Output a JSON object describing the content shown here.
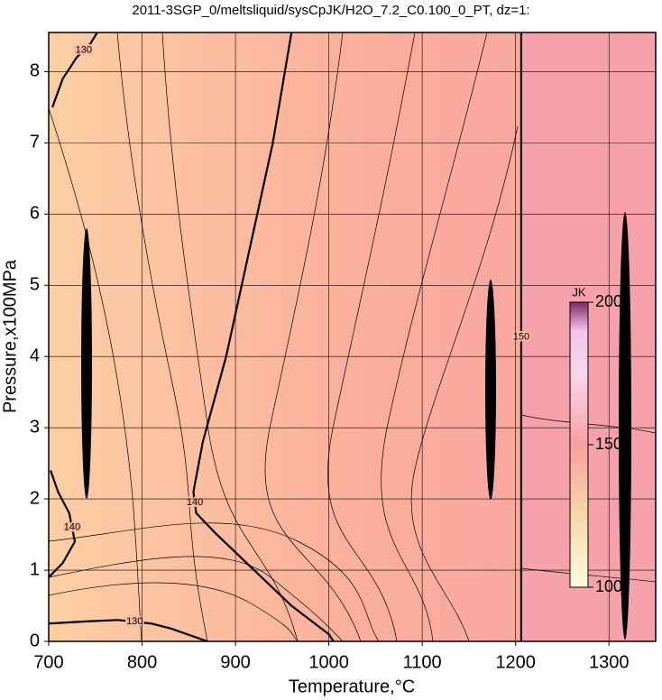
{
  "chart_data": {
    "type": "contour",
    "title": "2011-3SGP_0/meltsliquid/sysCpJK/H2O_7.2_C0.100_0_PT, dz=1:",
    "x_label": "Temperature,°C",
    "y_label": "Pressure,x100MPa",
    "xlim": [
      700,
      1350
    ],
    "xticks": [
      700,
      800,
      900,
      1000,
      1100,
      1200,
      1300
    ],
    "ylim": [
      0,
      8.55
    ],
    "yticks": [
      0,
      1,
      2,
      3,
      4,
      5,
      6,
      7,
      8
    ],
    "grid": true,
    "contours": [
      {
        "level": 140,
        "points": [
          [
            960,
            8.55
          ],
          [
            940,
            7
          ],
          [
            915,
            5.5
          ],
          [
            890,
            4
          ],
          [
            865,
            2.8
          ],
          [
            855,
            2.1
          ],
          [
            858,
            1.8
          ],
          [
            880,
            1.5
          ],
          [
            920,
            1.0
          ],
          [
            960,
            0.5
          ],
          [
            1000,
            0.1
          ],
          [
            1005,
            0
          ]
        ]
      },
      {
        "level": 150,
        "points": [
          [
            1206,
            0
          ],
          [
            1206,
            8.55
          ]
        ]
      },
      {
        "level": 130,
        "points": [
          [
            700,
            0.25
          ],
          [
            740,
            0.28
          ],
          [
            774,
            0.3
          ],
          [
            810,
            0.25
          ],
          [
            831,
            0.18
          ],
          [
            870,
            0
          ]
        ]
      },
      {
        "level": 130,
        "points": [
          [
            704,
            7.5
          ],
          [
            715,
            7.9
          ],
          [
            730,
            8.2
          ],
          [
            745,
            8.4
          ],
          [
            752,
            8.55
          ]
        ]
      },
      {
        "level": 140,
        "points": [
          [
            700,
            0.9
          ],
          [
            715,
            1.1
          ],
          [
            728,
            1.4
          ],
          [
            722,
            1.8
          ],
          [
            710,
            2.1
          ],
          [
            702,
            2.4
          ]
        ]
      }
    ],
    "colorbar": {
      "label": "JK",
      "lim": [
        100,
        200
      ],
      "ticks": [
        100,
        150,
        200
      ]
    }
  }
}
